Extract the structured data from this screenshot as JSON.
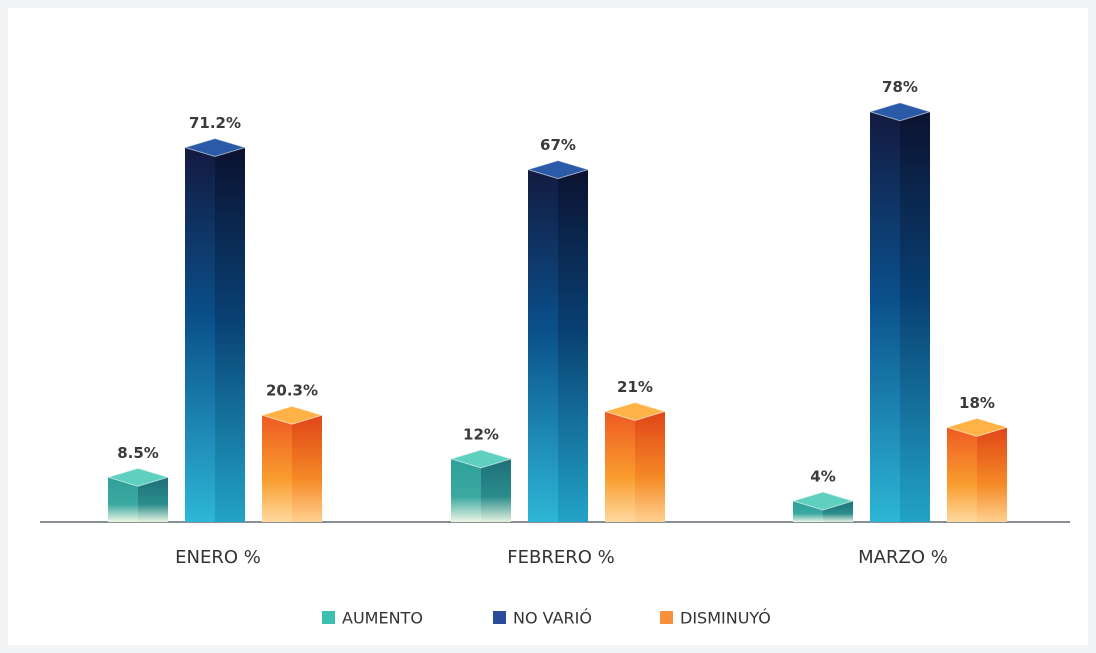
{
  "chart_data": {
    "type": "bar3d",
    "categories": [
      "ENERO %",
      "FEBRERO %",
      "MARZO %"
    ],
    "series": [
      {
        "name": "AUMENTO",
        "color": "#3dbfb0",
        "values": [
          8.5,
          12,
          4
        ],
        "value_labels": [
          "8.5%",
          "12%",
          "4%"
        ]
      },
      {
        "name": "NO VARIÓ",
        "color": "#2b4c9b",
        "values": [
          71.2,
          67,
          78
        ],
        "value_labels": [
          "71.2%",
          "67%",
          "78%"
        ]
      },
      {
        "name": "DISMINUYÓ",
        "color": "#f7923a",
        "values": [
          20.3,
          21,
          18
        ],
        "value_labels": [
          "20.3%",
          "21%",
          "18%"
        ]
      }
    ]
  }
}
